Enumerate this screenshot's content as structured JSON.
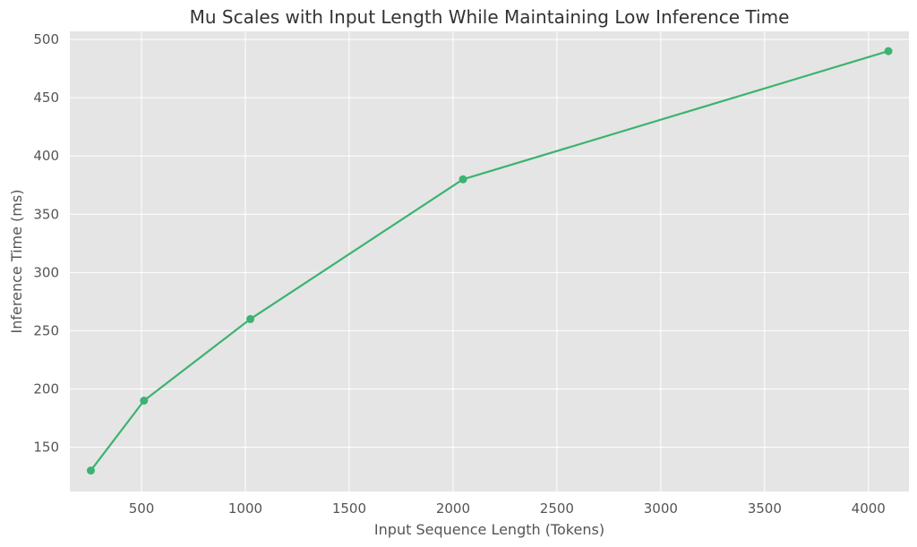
{
  "chart_data": {
    "type": "line",
    "title": "Mu Scales with Input Length While Maintaining Low Inference Time",
    "xlabel": "Input Sequence Length (Tokens)",
    "ylabel": "Inference Time (ms)",
    "xlim": [
      155,
      4195
    ],
    "ylim": [
      112,
      507
    ],
    "x_ticks": [
      500,
      1000,
      1500,
      2000,
      2500,
      3000,
      3500,
      4000
    ],
    "y_ticks": [
      150,
      200,
      250,
      300,
      350,
      400,
      450,
      500
    ],
    "grid": true,
    "series": [
      {
        "x": [
          256,
          512,
          1024,
          2048,
          4096
        ],
        "values": [
          130,
          190,
          260,
          380,
          490
        ]
      }
    ],
    "colors": {
      "line": "#3cb371",
      "plot_background": "#e5e5e5",
      "grid": "#ffffff"
    }
  }
}
